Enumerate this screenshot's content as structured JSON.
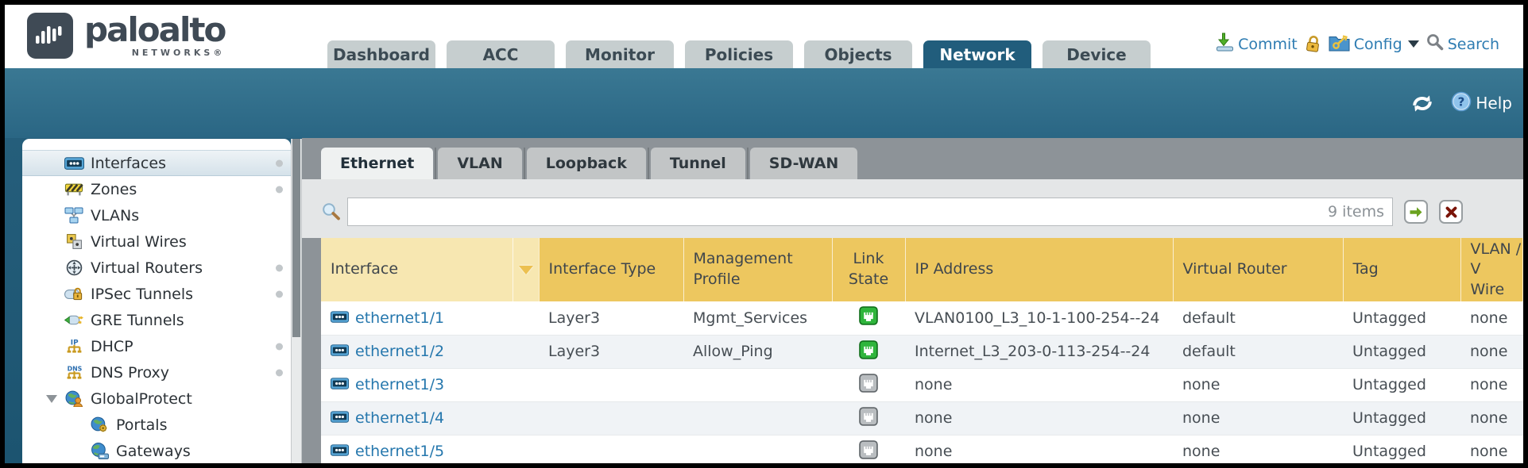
{
  "header": {
    "logo_primary": "paloalto",
    "logo_secondary": "NETWORKS®",
    "tabs": [
      {
        "label": "Dashboard",
        "active": false
      },
      {
        "label": "ACC",
        "active": false
      },
      {
        "label": "Monitor",
        "active": false
      },
      {
        "label": "Policies",
        "active": false
      },
      {
        "label": "Objects",
        "active": false
      },
      {
        "label": "Network",
        "active": true
      },
      {
        "label": "Device",
        "active": false
      }
    ],
    "commit_label": "Commit",
    "config_label": "Config",
    "search_label": "Search",
    "help_label": "Help"
  },
  "sidebar": {
    "items": [
      {
        "label": "Interfaces",
        "icon": "interfaces",
        "selected": true,
        "dot": true
      },
      {
        "label": "Zones",
        "icon": "zones",
        "dot": true
      },
      {
        "label": "VLANs",
        "icon": "vlans"
      },
      {
        "label": "Virtual Wires",
        "icon": "virtual-wires"
      },
      {
        "label": "Virtual Routers",
        "icon": "virtual-routers",
        "dot": true
      },
      {
        "label": "IPSec Tunnels",
        "icon": "ipsec-tunnels",
        "dot": true
      },
      {
        "label": "GRE Tunnels",
        "icon": "gre-tunnels"
      },
      {
        "label": "DHCP",
        "icon": "dhcp",
        "dot": true
      },
      {
        "label": "DNS Proxy",
        "icon": "dns-proxy",
        "dot": true
      },
      {
        "label": "GlobalProtect",
        "icon": "globalprotect",
        "expanded": true
      },
      {
        "label": "Portals",
        "icon": "portals",
        "indent": true
      },
      {
        "label": "Gateways",
        "icon": "gateways",
        "indent": true
      }
    ]
  },
  "subtabs": {
    "items": [
      {
        "label": "Ethernet",
        "active": true
      },
      {
        "label": "VLAN",
        "active": false
      },
      {
        "label": "Loopback",
        "active": false
      },
      {
        "label": "Tunnel",
        "active": false
      },
      {
        "label": "SD-WAN",
        "active": false
      }
    ]
  },
  "toolbar": {
    "items_count": "9 items"
  },
  "table": {
    "columns": [
      {
        "key": "interface",
        "label": "Interface",
        "filter": true
      },
      {
        "key": "type",
        "label": "Interface Type"
      },
      {
        "key": "mgmt",
        "label": "Management\nProfile"
      },
      {
        "key": "link",
        "label": "Link\nState",
        "align": "center"
      },
      {
        "key": "ip",
        "label": "IP Address"
      },
      {
        "key": "vr",
        "label": "Virtual Router"
      },
      {
        "key": "tag",
        "label": "Tag"
      },
      {
        "key": "vlan",
        "label": "VLAN / V\nWire"
      }
    ],
    "rows": [
      {
        "interface": "ethernet1/1",
        "type": "Layer3",
        "mgmt": "Mgmt_Services",
        "link": "up",
        "ip": "VLAN0100_L3_10-1-100-254--24",
        "vr": "default",
        "tag": "Untagged",
        "vlan": "none"
      },
      {
        "interface": "ethernet1/2",
        "type": "Layer3",
        "mgmt": "Allow_Ping",
        "link": "up",
        "ip": "Internet_L3_203-0-113-254--24",
        "vr": "default",
        "tag": "Untagged",
        "vlan": "none"
      },
      {
        "interface": "ethernet1/3",
        "type": "",
        "mgmt": "",
        "link": "down",
        "ip": "none",
        "vr": "none",
        "tag": "Untagged",
        "vlan": "none"
      },
      {
        "interface": "ethernet1/4",
        "type": "",
        "mgmt": "",
        "link": "down",
        "ip": "none",
        "vr": "none",
        "tag": "Untagged",
        "vlan": "none"
      },
      {
        "interface": "ethernet1/5",
        "type": "",
        "mgmt": "",
        "link": "down",
        "ip": "none",
        "vr": "none",
        "tag": "Untagged",
        "vlan": "none"
      }
    ]
  },
  "colors": {
    "accent_teal": "#2a6684",
    "active_tab": "#215d7c",
    "table_header_yellow": "#edc75f",
    "table_header_interface": "#f7e7b1",
    "link_blue": "#2577ad",
    "link_up_green": "#2fb53c",
    "link_down_gray": "#b9bdc0",
    "action_text_blue": "#2e7cb2"
  }
}
